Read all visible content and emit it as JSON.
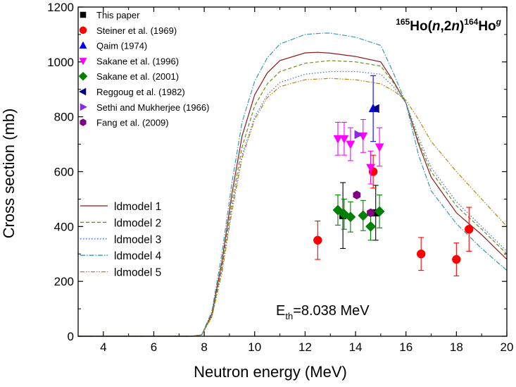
{
  "chart_data": {
    "type": "scatter",
    "xlabel": "Neutron energy (MeV)",
    "ylabel": "Cross section (mb)",
    "xlim": [
      3,
      20
    ],
    "ylim": [
      0,
      1200
    ],
    "xticks": [
      4,
      6,
      8,
      10,
      12,
      14,
      16,
      18,
      20
    ],
    "yticks": [
      0,
      200,
      400,
      600,
      800,
      1000,
      1200
    ],
    "reaction": {
      "pre_mass": "165",
      "element": "Ho",
      "open": "(",
      "n1": "n",
      "comma": ",",
      "two": "2",
      "n2": "n",
      "close": ")",
      "post_mass": "164",
      "product": "Ho",
      "state": "g"
    },
    "threshold": {
      "prefix": "E",
      "subscript": "th",
      "value": "=8.038 MeV"
    },
    "series": [
      {
        "name": "This paper",
        "marker": "square",
        "color": "#000000",
        "points": [
          {
            "x": 13.5,
            "y": 440,
            "err": 120
          },
          {
            "x": 14.8,
            "y": 450,
            "err": 100
          }
        ]
      },
      {
        "name": "Steiner et al. (1969)",
        "marker": "circle",
        "color": "#ff0000",
        "points": [
          {
            "x": 12.5,
            "y": 350,
            "err": 70
          },
          {
            "x": 14.7,
            "y": 600,
            "err": 60
          },
          {
            "x": 16.6,
            "y": 300,
            "err": 60
          },
          {
            "x": 18.0,
            "y": 280,
            "err": 60
          },
          {
            "x": 18.5,
            "y": 390,
            "err": 80
          }
        ]
      },
      {
        "name": "Qaim (1974)",
        "marker": "triangle-up",
        "color": "#0000ff",
        "points": [
          {
            "x": 14.7,
            "y": 830,
            "err": 120
          }
        ]
      },
      {
        "name": "Sakane et al. (1996)",
        "marker": "triangle-down",
        "color": "#ff00ff",
        "points": [
          {
            "x": 13.3,
            "y": 720,
            "err": 60
          },
          {
            "x": 13.55,
            "y": 720,
            "err": 60
          },
          {
            "x": 13.8,
            "y": 700,
            "err": 60
          },
          {
            "x": 14.3,
            "y": 730,
            "err": 60
          },
          {
            "x": 14.6,
            "y": 615,
            "err": 60
          },
          {
            "x": 14.95,
            "y": 690,
            "err": 70
          }
        ]
      },
      {
        "name": "Sakane et al. (2001)",
        "marker": "diamond",
        "color": "#008000",
        "points": [
          {
            "x": 13.3,
            "y": 460,
            "err": 55
          },
          {
            "x": 13.55,
            "y": 445,
            "err": 55
          },
          {
            "x": 13.8,
            "y": 435,
            "err": 55
          },
          {
            "x": 14.3,
            "y": 440,
            "err": 55
          },
          {
            "x": 14.6,
            "y": 400,
            "err": 50
          },
          {
            "x": 14.95,
            "y": 455,
            "err": 60
          }
        ]
      },
      {
        "name": "Reggoug et al. (1982)",
        "marker": "triangle-left",
        "color": "#00008b",
        "points": [
          {
            "x": 14.8,
            "y": 830,
            "err": 0
          }
        ]
      },
      {
        "name": "Sethi and Mukherjee (1966)",
        "marker": "triangle-right",
        "color": "#8a2be2",
        "points": [
          {
            "x": 14.1,
            "y": 735,
            "err": 0
          }
        ]
      },
      {
        "name": "Fang et al. (2009)",
        "marker": "hexagon",
        "color": "#800080",
        "points": [
          {
            "x": 14.05,
            "y": 515,
            "err": 0
          },
          {
            "x": 14.6,
            "y": 450,
            "err": 0
          }
        ]
      }
    ],
    "models": [
      {
        "name": "ldmodel 1",
        "color": "#8b1a1a",
        "dash": "",
        "x": [
          3,
          7.5,
          7.9,
          8.3,
          8.7,
          9.1,
          9.5,
          10,
          10.5,
          11,
          12,
          12.5,
          13,
          14,
          15,
          15.5,
          16,
          16.5,
          17,
          18,
          19,
          20
        ],
        "y": [
          0,
          0,
          5,
          80,
          270,
          520,
          730,
          880,
          960,
          1005,
          1033,
          1035,
          1032,
          1020,
          1000,
          930,
          850,
          700,
          580,
          450,
          370,
          280
        ]
      },
      {
        "name": "ldmodel 2",
        "color": "#6b8e23",
        "dash": "5,3",
        "x": [
          3,
          7.5,
          7.9,
          8.3,
          8.7,
          9.1,
          9.5,
          10,
          10.5,
          11,
          12,
          13,
          14,
          15,
          15.5,
          16,
          16.5,
          17,
          18,
          19,
          20
        ],
        "y": [
          0,
          0,
          5,
          75,
          250,
          490,
          690,
          840,
          920,
          965,
          995,
          1005,
          1000,
          985,
          925,
          850,
          710,
          600,
          475,
          390,
          300
        ]
      },
      {
        "name": "ldmodel 3",
        "color": "#4169e1",
        "dash": "1.5,2.5",
        "x": [
          3,
          7.5,
          7.9,
          8.3,
          8.7,
          9.1,
          9.5,
          10,
          10.5,
          11,
          12,
          13,
          14,
          15,
          15.5,
          16,
          16.5,
          17,
          18,
          19,
          20
        ],
        "y": [
          0,
          0,
          5,
          70,
          240,
          470,
          660,
          800,
          880,
          925,
          955,
          965,
          965,
          955,
          910,
          850,
          725,
          615,
          490,
          400,
          310
        ]
      },
      {
        "name": "ldmodel 4",
        "color": "#3a9aa8",
        "dash": "7,2,1.5,2",
        "x": [
          3,
          7.5,
          7.9,
          8.3,
          8.7,
          9.1,
          9.5,
          10,
          10.5,
          11,
          12,
          12.7,
          13,
          14,
          15,
          15.5,
          16,
          16.5,
          17,
          18,
          19,
          20
        ],
        "y": [
          0,
          0,
          5,
          90,
          300,
          560,
          780,
          930,
          1015,
          1065,
          1100,
          1105,
          1105,
          1090,
          1060,
          960,
          850,
          660,
          530,
          410,
          320,
          240
        ]
      },
      {
        "name": "ldmodel 5",
        "color": "#b8860b",
        "dash": "6,2,1.5,2,1.5,2",
        "x": [
          3,
          7.5,
          7.9,
          8.3,
          8.7,
          9.1,
          9.5,
          10,
          10.5,
          11,
          12,
          13,
          14,
          15,
          15.5,
          16,
          16.5,
          17,
          18,
          19,
          20
        ],
        "y": [
          0,
          0,
          5,
          70,
          230,
          455,
          650,
          790,
          870,
          910,
          935,
          940,
          935,
          920,
          895,
          860,
          790,
          710,
          600,
          500,
          400
        ]
      }
    ]
  }
}
